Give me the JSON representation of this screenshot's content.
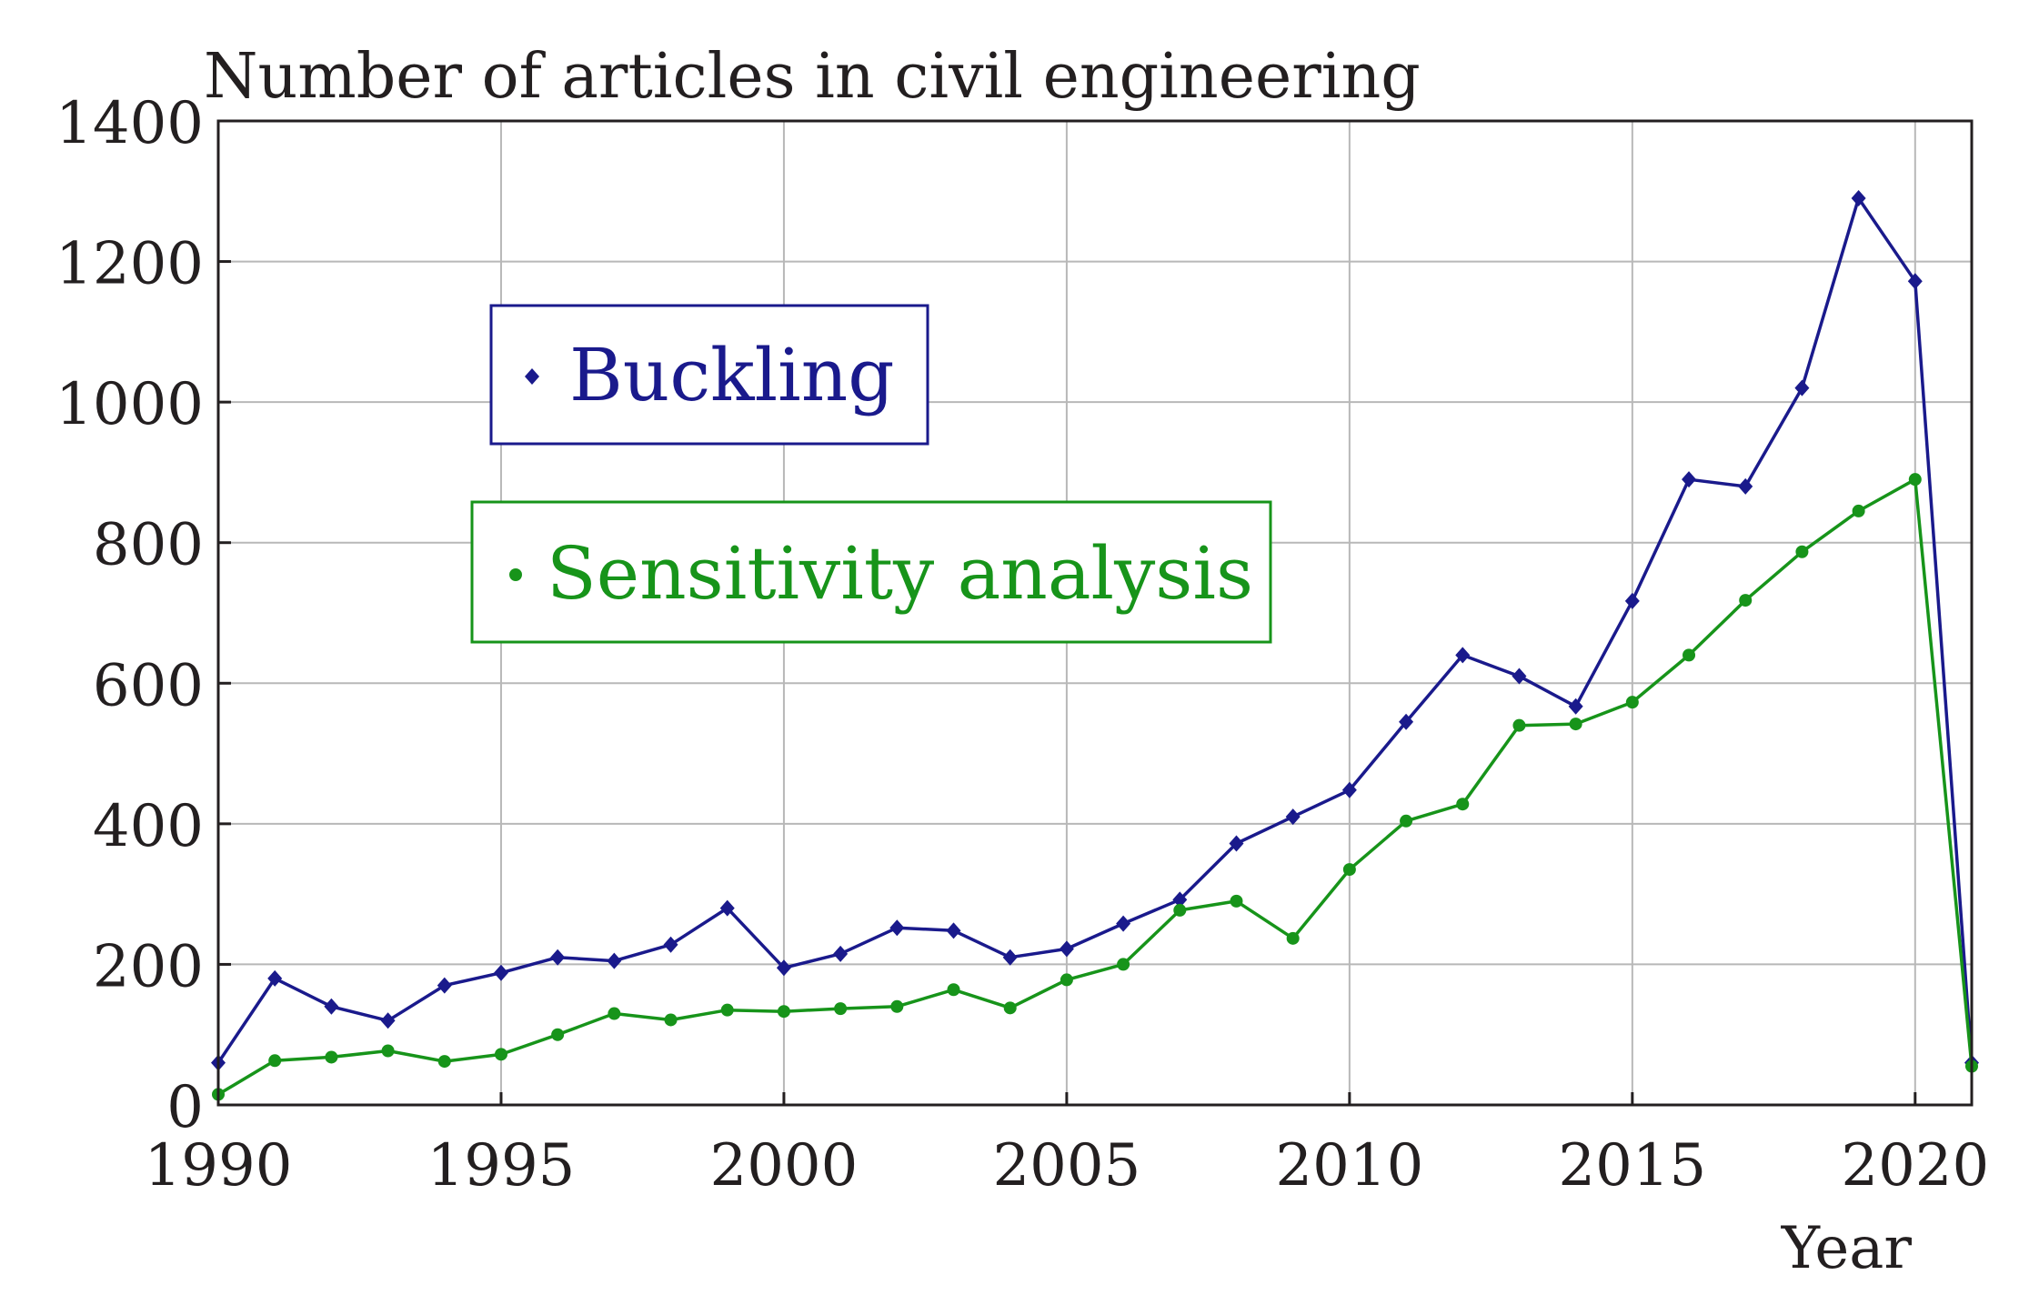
{
  "chart_data": {
    "type": "line",
    "title": "Number of articles in civil engineering",
    "xlabel": "Year",
    "ylabel": "",
    "xlim": [
      1990,
      2021
    ],
    "ylim": [
      0,
      1400
    ],
    "x_ticks": [
      "1990",
      "1995",
      "2000",
      "2005",
      "2010",
      "2015",
      "2020"
    ],
    "y_ticks": [
      "0",
      "200",
      "400",
      "600",
      "800",
      "1000",
      "1200",
      "1400"
    ],
    "grid": true,
    "legend_position": "upper-left inside plot",
    "x": [
      1990,
      1991,
      1992,
      1993,
      1994,
      1995,
      1996,
      1997,
      1998,
      1999,
      2000,
      2001,
      2002,
      2003,
      2004,
      2005,
      2006,
      2007,
      2008,
      2009,
      2010,
      2011,
      2012,
      2013,
      2014,
      2015,
      2016,
      2017,
      2018,
      2019,
      2020,
      2021
    ],
    "series": [
      {
        "name": "Buckling",
        "color": "#1a1a8c",
        "marker": "diamond",
        "values": [
          60,
          180,
          140,
          120,
          170,
          188,
          210,
          205,
          228,
          280,
          195,
          215,
          252,
          248,
          210,
          222,
          258,
          292,
          372,
          410,
          448,
          545,
          640,
          610,
          567,
          717,
          890,
          880,
          1020,
          1290,
          1172,
          60
        ]
      },
      {
        "name": "Sensitivity analysis",
        "color": "#17941a",
        "marker": "circle",
        "values": [
          15,
          63,
          68,
          77,
          62,
          72,
          100,
          130,
          121,
          135,
          133,
          137,
          140,
          164,
          138,
          178,
          200,
          277,
          290,
          237,
          335,
          404,
          428,
          540,
          542,
          573,
          640,
          718,
          787,
          845,
          890,
          55
        ]
      }
    ]
  }
}
